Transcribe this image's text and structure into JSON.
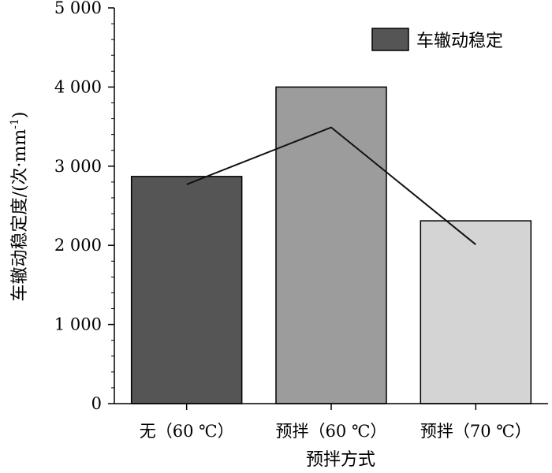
{
  "chart_data": {
    "type": "bar",
    "title": "",
    "xlabel": "预拌方式",
    "ylabel_main": "车辙动稳定度/(次·mm",
    "ylabel_sup": "-1",
    "ylabel_close": ")",
    "ylim": [
      0,
      5000
    ],
    "yticks": [
      0,
      1000,
      2000,
      3000,
      4000,
      5000
    ],
    "ytick_labels": [
      "0",
      "1 000",
      "2 000",
      "3 000",
      "4 000",
      "5 000"
    ],
    "categories": [
      "无（60 ℃）",
      "预拌（60 ℃）",
      "预拌（70 ℃）"
    ],
    "series": [
      {
        "name": "车辙动稳定",
        "values": [
          2870,
          4000,
          2310
        ],
        "colors": [
          "#555555",
          "#9c9c9c",
          "#d4d4d4"
        ]
      }
    ],
    "trend_line": [
      2770,
      3490,
      2010
    ],
    "legend": {
      "position": "top-right",
      "label": "车辙动稳定",
      "color": "#555555"
    },
    "grid": false
  }
}
